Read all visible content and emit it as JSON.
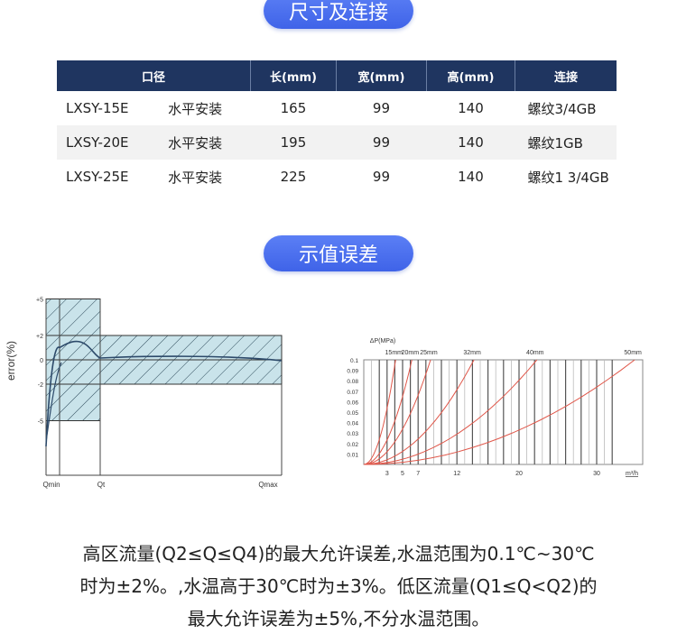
{
  "sections": {
    "dimensions_title": "尺寸及连接",
    "error_title": "示值误差"
  },
  "table": {
    "headers": [
      "口径",
      "长(mm)",
      "宽(mm)",
      "高(mm)",
      "连接"
    ],
    "rows": [
      {
        "model": "LXSY-15E",
        "install": "水平安装",
        "length": "165",
        "width": "99",
        "height": "140",
        "connection": "螺纹3/4GB"
      },
      {
        "model": "LXSY-20E",
        "install": "水平安装",
        "length": "195",
        "width": "99",
        "height": "140",
        "connection": "螺纹1GB"
      },
      {
        "model": "LXSY-25E",
        "install": "水平安装",
        "length": "225",
        "width": "99",
        "height": "140",
        "connection": "螺纹1 3/4GB"
      }
    ],
    "header_color": "#1f3560"
  },
  "chart_data": [
    {
      "type": "area",
      "ylabel": "error(%)",
      "yticks": [
        "+5",
        "+2",
        "0",
        "-2",
        "-5"
      ],
      "xticks": [
        "Qmin",
        "Qt",
        "Qmax"
      ],
      "zones": [
        {
          "from": "Qmin",
          "to": "Qt",
          "ymin": -5,
          "ymax": 5
        },
        {
          "from": "Qt",
          "to": "Qmax",
          "ymin": -2,
          "ymax": 2
        }
      ],
      "fill_color": "#c9e3ea"
    },
    {
      "type": "line",
      "ylabel": "ΔP(MPa)",
      "xlabel": "m³/h",
      "yticks": [
        "0.1",
        "0.09",
        "0.08",
        "0.07",
        "0.06",
        "0.05",
        "0.04",
        "0.03",
        "0.02",
        "0.01"
      ],
      "xticks": [
        "3",
        "5",
        "7",
        "12",
        "20",
        "30"
      ],
      "ylim": [
        0,
        0.1
      ],
      "xlim": [
        0,
        36
      ],
      "line_color": "#e0574a",
      "series": [
        {
          "name": "15mm",
          "x_at_max": 4.1
        },
        {
          "name": "20mm",
          "x_at_max": 6.2
        },
        {
          "name": "25mm",
          "x_at_max": 8.6
        },
        {
          "name": "32mm",
          "x_at_max": 14.2
        },
        {
          "name": "40mm",
          "x_at_max": 22.3
        },
        {
          "name": "50mm",
          "x_at_max": 34.9
        }
      ]
    }
  ],
  "description": [
    "高区流量(Q2≤Q≤Q4)的最大允许误差,水温范围为0.1℃~30℃",
    "时为±2%。,水温高于30℃时为±3%。低区流量(Q1≤Q<Q2)的",
    "最大允许误差为±5%,不分水温范围。"
  ]
}
